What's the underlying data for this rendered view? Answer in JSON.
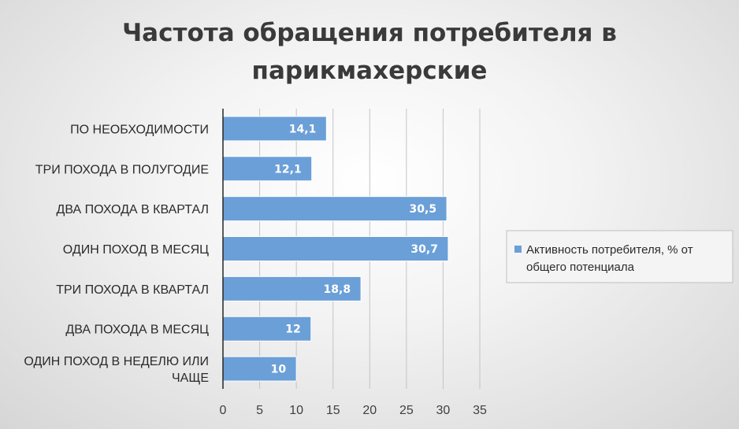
{
  "chart_data": {
    "type": "bar",
    "orientation": "horizontal",
    "title_lines": [
      "Частота обращения потребителя в",
      "парикмахерские"
    ],
    "categories": [
      "ПО НЕОБХОДИМОСТИ",
      "ТРИ ПОХОДА В ПОЛУГОДИЕ",
      "ДВА ПОХОДА В КВАРТАЛ",
      "ОДИН ПОХОД В МЕСЯЦ",
      "ТРИ ПОХОДА В КВАРТАЛ",
      "ДВА ПОХОДА В МЕСЯЦ",
      "ОДИН ПОХОД В НЕДЕЛЮ ИЛИ ЧАЩЕ"
    ],
    "category_lines": [
      [
        "ПО НЕОБХОДИМОСТИ"
      ],
      [
        "ТРИ ПОХОДА В ПОЛУГОДИЕ"
      ],
      [
        "ДВА ПОХОДА В КВАРТАЛ"
      ],
      [
        "ОДИН ПОХОД В МЕСЯЦ"
      ],
      [
        "ТРИ ПОХОДА В КВАРТАЛ"
      ],
      [
        "ДВА ПОХОДА В МЕСЯЦ"
      ],
      [
        "ОДИН ПОХОД В НЕДЕЛЮ ИЛИ",
        "ЧАЩЕ"
      ]
    ],
    "series": [
      {
        "name": "Активность потребителя, % от общего потенциала",
        "legend_lines": [
          "Активность потребителя, % от",
          "общего потенциала"
        ],
        "values": [
          14.1,
          12.1,
          30.5,
          30.7,
          18.8,
          12,
          10
        ],
        "data_labels": [
          "14,1",
          "12,1",
          "30,5",
          "30,7",
          "18,8",
          "12",
          "10"
        ]
      }
    ],
    "xlim": [
      0,
      35
    ],
    "xticks": [
      "0",
      "5",
      "10",
      "15",
      "20",
      "25",
      "30",
      "35"
    ],
    "xtick_values": [
      0,
      5,
      10,
      15,
      20,
      25,
      30,
      35
    ],
    "grid": "vertical",
    "legend_position": "right",
    "colors": {
      "bar": "#6b9fd8",
      "bar_edge": "#ffffff",
      "grid": "#c4c4c4",
      "axis": "#262626",
      "legend_border": "#bfbfbf",
      "legend_bg": "#f4f4f4"
    }
  }
}
